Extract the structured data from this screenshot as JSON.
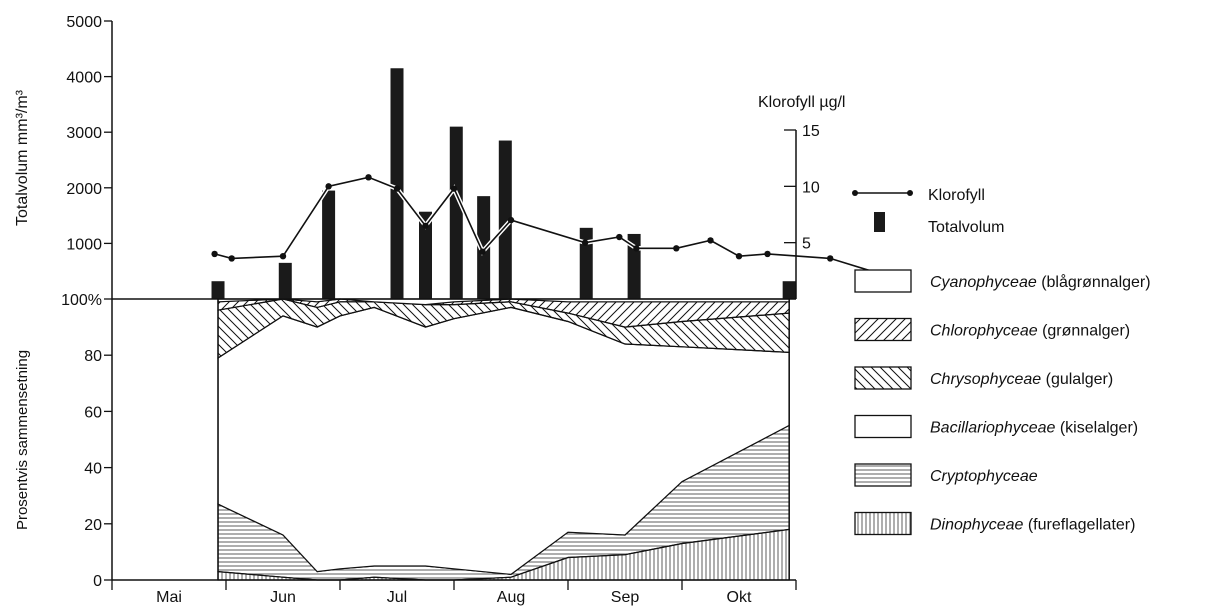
{
  "chart_data": {
    "type": "bar",
    "months": [
      "Mai",
      "Jun",
      "Jul",
      "Aug",
      "Sep",
      "Okt"
    ],
    "top_panel": {
      "left_axis_label": "Totalvolum mm³/m³",
      "left_ticks": [
        "5000",
        "4000",
        "3000",
        "2000",
        "1000"
      ],
      "left_ylim": [
        0,
        5000
      ],
      "right_axis_label": "Klorofyll µg/l",
      "right_ticks": [
        "15",
        "10",
        "5"
      ],
      "right_ylim": [
        0,
        15
      ],
      "bars_totalvolum": [
        {
          "x": 0.93,
          "v": 320
        },
        {
          "x": 1.52,
          "v": 650
        },
        {
          "x": 1.9,
          "v": 1950
        },
        {
          "x": 2.5,
          "v": 4150
        },
        {
          "x": 2.75,
          "v": 1570
        },
        {
          "x": 3.02,
          "v": 3100
        },
        {
          "x": 3.26,
          "v": 1850
        },
        {
          "x": 3.45,
          "v": 2850
        },
        {
          "x": 4.16,
          "v": 1280
        },
        {
          "x": 4.58,
          "v": 1170
        },
        {
          "x": 5.94,
          "v": 320
        }
      ],
      "line_klorofyll": [
        {
          "x": 0.9,
          "v": 4.0
        },
        {
          "x": 1.05,
          "v": 3.6
        },
        {
          "x": 1.5,
          "v": 3.8
        },
        {
          "x": 1.9,
          "v": 10.0
        },
        {
          "x": 2.25,
          "v": 10.8
        },
        {
          "x": 2.5,
          "v": 9.8
        },
        {
          "x": 2.75,
          "v": 6.5
        },
        {
          "x": 3.0,
          "v": 9.8
        },
        {
          "x": 3.25,
          "v": 4.2
        },
        {
          "x": 3.5,
          "v": 7.0
        },
        {
          "x": 4.15,
          "v": 5.0
        },
        {
          "x": 4.45,
          "v": 5.5
        },
        {
          "x": 4.6,
          "v": 4.5
        },
        {
          "x": 4.95,
          "v": 4.5
        },
        {
          "x": 5.25,
          "v": 5.2
        },
        {
          "x": 5.5,
          "v": 3.8
        },
        {
          "x": 5.75,
          "v": 4.0
        },
        {
          "x": 6.3,
          "v": 3.6
        },
        {
          "x": 6.75,
          "v": 2.2
        }
      ]
    },
    "bottom_panel": {
      "axis_label": "Prosentvis sammensetning",
      "ticks": [
        "100%",
        "80",
        "60",
        "40",
        "20",
        "0"
      ],
      "ylim": [
        0,
        100
      ],
      "x": [
        0.93,
        1.5,
        1.8,
        2.0,
        2.3,
        2.75,
        3.0,
        3.5,
        4.0,
        4.5,
        5.0,
        5.94
      ],
      "cumulative_upper_bounds": {
        "Dinophyceae": [
          3,
          1,
          0,
          0,
          1,
          0,
          0,
          1,
          8,
          9,
          13,
          18
        ],
        "Cryptophyceae": [
          27,
          16,
          3,
          4,
          5,
          5,
          4,
          2,
          17,
          16,
          35,
          55
        ],
        "Bacillariophyceae": [
          79,
          94,
          90,
          94,
          97,
          90,
          93,
          97,
          92,
          84,
          83,
          81
        ],
        "Chrysophyceae": [
          96,
          100,
          97,
          99,
          99,
          98,
          98,
          99,
          95,
          90,
          92,
          95
        ],
        "Chlorophyceae": [
          99,
          100,
          99,
          100,
          99,
          98,
          99,
          100,
          99,
          99,
          99,
          99
        ],
        "Cyanophyceae": [
          100,
          100,
          100,
          100,
          100,
          100,
          100,
          100,
          100,
          100,
          100,
          100
        ]
      }
    },
    "legend": [
      {
        "key": "line",
        "italic": "Klorofyll",
        "rest": ""
      },
      {
        "key": "bar",
        "italic": "Totalvolum",
        "rest": ""
      },
      {
        "key": "Cyanophyceae",
        "italic": "Cyanophyceae",
        "rest": " (blågrønnalger)"
      },
      {
        "key": "Chlorophyceae",
        "italic": "Chlorophyceae",
        "rest": " (grønnalger)"
      },
      {
        "key": "Chrysophyceae",
        "italic": "Chrysophyceae",
        "rest": " (gulalger)"
      },
      {
        "key": "Bacillariophyceae",
        "italic": "Bacillariophyceae",
        "rest": " (kiselalger)"
      },
      {
        "key": "Cryptophyceae",
        "italic": "Cryptophyceae",
        "rest": ""
      },
      {
        "key": "Dinophyceae",
        "italic": "Dinophyceae",
        "rest": " (fureflagellater)"
      }
    ],
    "colors": {
      "ink": "#111111",
      "bar": "#1a1a1a",
      "background": "#ffffff"
    }
  }
}
